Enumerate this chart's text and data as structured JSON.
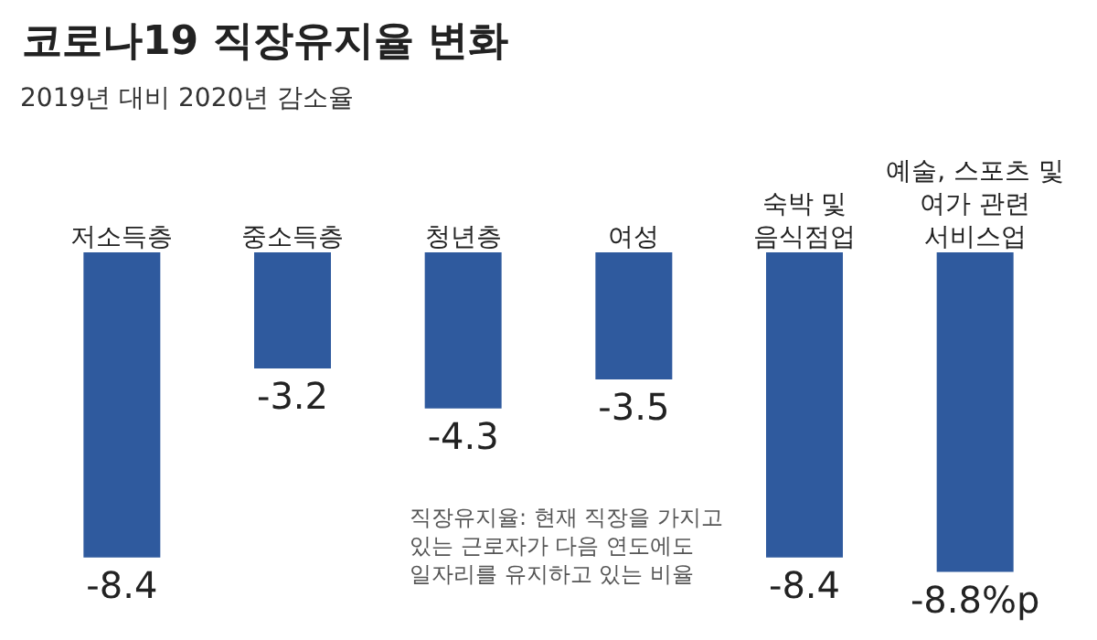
{
  "chart_data": {
    "type": "bar",
    "title": "코로나19 직장유지율 변화",
    "subtitle": "2019년 대비 2020년 감소율",
    "categories": [
      "저소득층",
      "중소득층",
      "청년층",
      "여성",
      "숙박 및\n음식점업",
      "예술, 스포츠 및\n여가 관련\n서비스업"
    ],
    "values": [
      -8.4,
      -3.2,
      -4.3,
      -3.5,
      -8.4,
      -8.8
    ],
    "value_labels": [
      "-8.4",
      "-3.2",
      "-4.3",
      "-3.5",
      "-8.4",
      "-8.8%p"
    ],
    "color": "#2f5a9e",
    "tick_labels": "x",
    "grid": false,
    "annotations": [
      "직장유지율: 현재 직장을 가지고\n있는 근로자가 다음 연도에도\n일자리를 유지하고 있는 비율"
    ]
  }
}
